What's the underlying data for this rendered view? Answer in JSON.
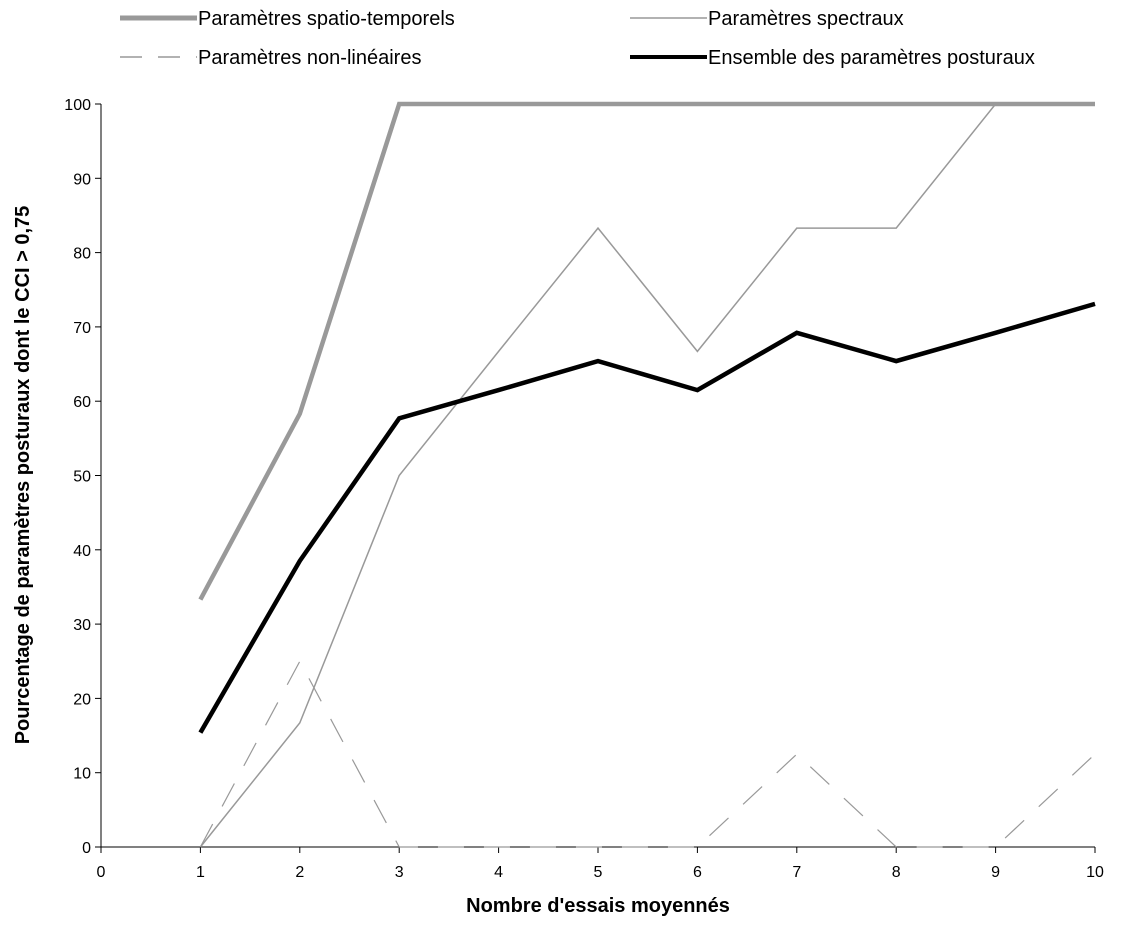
{
  "chart_data": {
    "type": "line",
    "title": "",
    "xlabel": "Nombre d'essais moyennés",
    "ylabel": "Pourcentage de paramètres posturaux dont le CCI > 0,75",
    "xlim": [
      0,
      10
    ],
    "ylim": [
      0,
      100
    ],
    "x_ticks": [
      "0",
      "1",
      "2",
      "3",
      "4",
      "5",
      "6",
      "7",
      "8",
      "9",
      "10"
    ],
    "y_ticks": [
      "0",
      "10",
      "20",
      "30",
      "40",
      "50",
      "60",
      "70",
      "80",
      "90",
      "100"
    ],
    "grid": false,
    "legend_position": "top",
    "x": [
      1,
      2,
      3,
      4,
      5,
      6,
      7,
      8,
      9,
      10
    ],
    "series": [
      {
        "name": "Paramètres spatio-temporels",
        "values": [
          33.3,
          58.3,
          100,
          100,
          100,
          100,
          100,
          100,
          100,
          100
        ],
        "color": "#999999",
        "style": "thick"
      },
      {
        "name": "Paramètres spectraux",
        "values": [
          0,
          16.7,
          50,
          66.7,
          83.3,
          66.7,
          83.3,
          83.3,
          100,
          100
        ],
        "color": "#999999",
        "style": "thin"
      },
      {
        "name": "Paramètres non-linéaires",
        "values": [
          0,
          25,
          0,
          0,
          0,
          0,
          12.5,
          0,
          0,
          12.5
        ],
        "color": "#999999",
        "style": "dashed"
      },
      {
        "name": "Ensemble des paramètres posturaux",
        "values": [
          15.4,
          38.5,
          57.7,
          61.5,
          65.4,
          61.5,
          69.2,
          65.4,
          69.2,
          73.1
        ],
        "color": "#000000",
        "style": "thick"
      }
    ]
  }
}
